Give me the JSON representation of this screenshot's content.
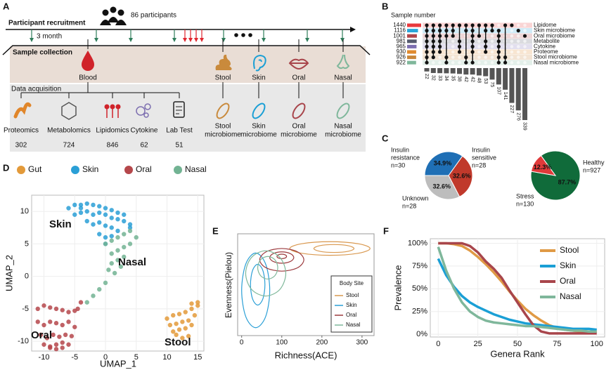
{
  "panel_labels": [
    "A",
    "B",
    "C",
    "D",
    "E",
    "F"
  ],
  "panel_a": {
    "recruitment_label": "Participant recruitment",
    "participants": "86 participants",
    "interval": "3 month",
    "collection_label": "Sample collection",
    "acquisition_label": "Data acquisition",
    "sources": [
      "Blood",
      "Stool",
      "Skin",
      "Oral",
      "Nasal"
    ],
    "omics": [
      {
        "name": "Proteomics",
        "count": 302
      },
      {
        "name": "Metabolomics",
        "count": 724
      },
      {
        "name": "Lipidomics",
        "count": 846
      },
      {
        "name": "Cytokine",
        "count": 62
      },
      {
        "name": "Lab Test",
        "count": 51
      }
    ],
    "microbiomes": [
      [
        "Stool",
        "microbiome"
      ],
      [
        "Skin",
        "microbiome"
      ],
      [
        "Oral",
        "microbiome"
      ],
      [
        "Nasal",
        "microbiome"
      ]
    ]
  },
  "chart_data": [
    {
      "type": "upset",
      "title": "Sample number",
      "sets": [
        {
          "name": "Lipidome",
          "size": 1440,
          "color": "#e8393d"
        },
        {
          "name": "Skin microbiome",
          "size": 1116,
          "color": "#2aa6d9"
        },
        {
          "name": "Oral microbiome",
          "size": 1001,
          "color": "#b0454a"
        },
        {
          "name": "Metabolite",
          "size": 981,
          "color": "#555b6e"
        },
        {
          "name": "Cytokine",
          "size": 965,
          "color": "#7d6fb0"
        },
        {
          "name": "Proteome",
          "size": 930,
          "color": "#e08a2e"
        },
        {
          "name": "Stool microbiome",
          "size": 926,
          "color": "#c8863a"
        },
        {
          "name": "Nasal microbiome",
          "size": 922,
          "color": "#7fb79b"
        }
      ],
      "intersections": [
        {
          "sets": [
            0,
            1,
            2,
            3,
            4,
            5,
            6,
            7
          ],
          "value": 22
        },
        {
          "sets": [
            0,
            1,
            2,
            3,
            4,
            5,
            6
          ],
          "value": 32
        },
        {
          "sets": [
            0,
            1,
            2,
            3,
            4,
            5
          ],
          "value": 33
        },
        {
          "sets": [
            0,
            1,
            2,
            6,
            7
          ],
          "value": 34
        },
        {
          "sets": [
            0,
            1,
            2
          ],
          "value": 35
        },
        {
          "sets": [
            0,
            3,
            4,
            5
          ],
          "value": 38
        },
        {
          "sets": [
            0,
            1,
            6,
            7
          ],
          "value": 42
        },
        {
          "sets": [
            0,
            1,
            2,
            3,
            4,
            5,
            7
          ],
          "value": 42
        },
        {
          "sets": [
            0,
            2
          ],
          "value": 48
        },
        {
          "sets": [
            0,
            1,
            3,
            4,
            5
          ],
          "value": 53
        },
        {
          "sets": [
            0,
            1
          ],
          "value": 75
        },
        {
          "sets": [
            1,
            2,
            3,
            4,
            5,
            6,
            7
          ],
          "value": 107
        },
        {
          "sets": [
            0,
            6,
            7
          ],
          "value": 141
        },
        {
          "sets": [
            0
          ],
          "value": 227
        },
        {
          "sets": [
            1
          ],
          "value": 276
        },
        {
          "sets": [
            2
          ],
          "value": 339
        }
      ]
    },
    {
      "type": "pie",
      "labels": [
        [
          "Insulin",
          "resistance"
        ],
        [
          "Insulin",
          "sensitive"
        ],
        [
          "Unknown"
        ]
      ],
      "values": [
        34.9,
        32.6,
        32.6
      ],
      "value_labels": [
        "34.9%",
        "32.6%",
        "32.6%"
      ],
      "counts": [
        30,
        28,
        28
      ],
      "count_labels": [
        "n=30",
        "n=28",
        "n=28"
      ],
      "colors": [
        "#1f6fb5",
        "#c0392b",
        "#bdbdbd"
      ],
      "label_colors": [
        "#1f6fb5",
        "#c0392b",
        "#111111"
      ]
    },
    {
      "type": "pie",
      "labels": [
        [
          "Healthy"
        ],
        [
          "Stress"
        ]
      ],
      "values": [
        87.7,
        12.3
      ],
      "value_labels": [
        "87.7%",
        "12.3%"
      ],
      "counts": [
        927,
        130
      ],
      "count_labels": [
        "n=927",
        "n=130"
      ],
      "colors": [
        "#106b3a",
        "#e03a3a"
      ],
      "label_colors": [
        "#106b3a",
        "#e03a3a"
      ]
    },
    {
      "type": "scatter",
      "x_label": "UMAP_1",
      "y_label": "UMAP_2",
      "xlim": [
        -12,
        16
      ],
      "ylim": [
        -11.5,
        12.5
      ],
      "xticks": [
        -10,
        -5,
        0,
        5,
        10,
        15
      ],
      "yticks": [
        -10,
        -5,
        0,
        5,
        10
      ],
      "grid": true,
      "legend": [
        "Gut",
        "Skin",
        "Oral",
        "Nasal"
      ],
      "annotations": [
        "Skin",
        "Nasal",
        "Oral",
        "Stool"
      ],
      "series": [
        {
          "name": "Gut",
          "color": "#e39a3a",
          "x": [
            10,
            11,
            12,
            13,
            14,
            15,
            10.5,
            11.5,
            12.5,
            13.5,
            14.5,
            11,
            12,
            13,
            14,
            12.5,
            13.5,
            11.5,
            14,
            15
          ],
          "y": [
            -6.5,
            -6,
            -5.8,
            -5.5,
            -5,
            -4.5,
            -7.5,
            -7.3,
            -7,
            -6.8,
            -6,
            -8.5,
            -8.2,
            -8,
            -7.5,
            -9.5,
            -9.2,
            -9,
            -4.2,
            -4
          ]
        },
        {
          "name": "Skin",
          "color": "#2a9fd6",
          "x": [
            -6,
            -5,
            -4,
            -3,
            -2,
            -1,
            0,
            1,
            2,
            3,
            -5,
            -4,
            -3,
            -2,
            -1,
            0,
            1,
            2,
            3,
            4,
            -3,
            -2,
            -1,
            0,
            1,
            2,
            -1,
            0,
            1,
            0,
            -4,
            4
          ],
          "y": [
            10.5,
            11,
            11,
            11.2,
            11,
            10.8,
            10.5,
            10.2,
            9.8,
            9.5,
            9.5,
            9.8,
            10,
            9.5,
            9.8,
            9.5,
            9,
            8.8,
            8.5,
            7.5,
            8.5,
            8,
            8.3,
            7.8,
            7.5,
            7,
            6.5,
            6,
            6.2,
            5,
            10.5,
            8
          ]
        },
        {
          "name": "Oral",
          "color": "#b5474b",
          "x": [
            -11,
            -10,
            -9,
            -8,
            -7,
            -6,
            -5,
            -4.5,
            -11,
            -10,
            -9,
            -8,
            -7,
            -6,
            -5,
            -10.5,
            -9.5,
            -8.5,
            -7.5,
            -6.5,
            -5.5,
            -10,
            -9,
            -8,
            -7,
            -6,
            -9,
            -8,
            -7,
            -4
          ],
          "y": [
            -5,
            -4.5,
            -4.8,
            -5,
            -5.2,
            -5.5,
            -5.3,
            -5,
            -7,
            -7.5,
            -7,
            -7.2,
            -7.5,
            -7,
            -7.8,
            -9,
            -9.5,
            -9,
            -9.3,
            -9,
            -9.2,
            -10.5,
            -10.8,
            -10.5,
            -10.2,
            -10.5,
            -11,
            -11.2,
            -11,
            -4
          ]
        },
        {
          "name": "Nasal",
          "color": "#72b393",
          "x": [
            0,
            1,
            2,
            1,
            2,
            3,
            4,
            1,
            2,
            3,
            0.5,
            1.5,
            2.5,
            0,
            -1,
            -2,
            -3,
            3,
            4,
            5
          ],
          "y": [
            5,
            5.5,
            6,
            3.5,
            4,
            4.5,
            5,
            2,
            2.5,
            3,
            1,
            0.5,
            1.5,
            -1,
            -2,
            -3,
            -4,
            6.5,
            7,
            6
          ]
        }
      ]
    },
    {
      "type": "contour",
      "x_label": "Richness(ACE)",
      "y_label": "Evenness(Pielou)",
      "xlim": [
        -10,
        330
      ],
      "ylim": [
        0.05,
        0.95
      ],
      "xticks": [
        0,
        100,
        200,
        300
      ],
      "legend_title": "Body Site",
      "series": [
        {
          "name": "Stool",
          "color": "#d9984f",
          "contours": [
            {
              "x": [
                320,
                290.7,
                220,
                149.3,
                120,
                149.3,
                220,
                290.7
              ],
              "y": [
                0.82,
                0.862,
                0.88,
                0.862,
                0.82,
                0.778,
                0.76,
                0.778
              ]
            },
            {
              "x": [
                280,
                265.4,
                230,
                194.6,
                180,
                194.6,
                230,
                265.4
              ],
              "y": [
                0.82,
                0.845,
                0.855,
                0.845,
                0.82,
                0.795,
                0.785,
                0.795
              ]
            }
          ]
        },
        {
          "name": "Skin",
          "color": "#2a9fd6",
          "contours": [
            {
              "x": [
                70,
                59.7,
                35,
                10.3,
                0,
                10.3,
                35,
                59.7
              ],
              "y": [
                0.45,
                0.683,
                0.78,
                0.683,
                0.45,
                0.217,
                0.12,
                0.217
              ]
            },
            {
              "x": [
                58,
                52.7,
                40,
                27.3,
                22,
                27.3,
                40,
                52.7
              ],
              "y": [
                0.5,
                0.627,
                0.68,
                0.627,
                0.5,
                0.373,
                0.32,
                0.373
              ]
            }
          ]
        },
        {
          "name": "Oral",
          "color": "#9c3a3e",
          "contours": [
            {
              "x": [
                155,
                138.9,
                100,
                61.1,
                45,
                61.1,
                100,
                138.9
              ],
              "y": [
                0.72,
                0.791,
                0.82,
                0.791,
                0.72,
                0.649,
                0.62,
                0.649
              ]
            },
            {
              "x": [
                130,
                121.2,
                100,
                78.8,
                70,
                78.8,
                100,
                121.2
              ],
              "y": [
                0.74,
                0.775,
                0.79,
                0.775,
                0.74,
                0.705,
                0.69,
                0.705
              ]
            },
            {
              "x": [
                112,
                108.5,
                100,
                91.5,
                88,
                91.5,
                100,
                108.5
              ],
              "y": [
                0.75,
                0.764,
                0.77,
                0.764,
                0.75,
                0.736,
                0.73,
                0.736
              ]
            }
          ]
        },
        {
          "name": "Nasal",
          "color": "#7fb89a",
          "contours": [
            {
              "x": [
                110,
                95.4,
                60,
                24.6,
                10,
                24.6,
                60,
                95.4
              ],
              "y": [
                0.6,
                0.741,
                0.8,
                0.741,
                0.6,
                0.459,
                0.4,
                0.459
              ]
            },
            {
              "x": [
                90,
                82.7,
                65,
                47.3,
                40,
                47.3,
                65,
                82.7
              ],
              "y": [
                0.65,
                0.721,
                0.75,
                0.721,
                0.65,
                0.579,
                0.55,
                0.579
              ]
            }
          ]
        }
      ]
    },
    {
      "type": "line",
      "x_label": "Genera Rank",
      "y_label": "Prevalence",
      "xlim": [
        -5,
        105
      ],
      "ylim": [
        -3,
        105
      ],
      "xticks": [
        0,
        25,
        50,
        75,
        100
      ],
      "yticks": [
        {
          "value": 0,
          "label": "0%"
        },
        {
          "value": 25,
          "label": "25%"
        },
        {
          "value": 50,
          "label": "50%"
        },
        {
          "value": 75,
          "label": "75%"
        },
        {
          "value": 100,
          "label": "100%"
        }
      ],
      "grid": true,
      "x": [
        0,
        5,
        10,
        15,
        20,
        25,
        30,
        35,
        40,
        45,
        50,
        55,
        60,
        65,
        70,
        75,
        80,
        85,
        90,
        95,
        100
      ],
      "series": [
        {
          "name": "Stool",
          "color": "#e09a45",
          "values": [
            100,
            100,
            99,
            97,
            92,
            85,
            77,
            68,
            58,
            47,
            37,
            28,
            21,
            15,
            10,
            7,
            5,
            4,
            3,
            3,
            3
          ]
        },
        {
          "name": "Skin",
          "color": "#1a9fd5",
          "values": [
            83,
            65,
            52,
            42,
            35,
            30,
            26,
            22,
            19,
            16,
            14,
            12,
            11,
            10,
            9,
            8,
            7,
            6,
            6,
            6,
            5
          ]
        },
        {
          "name": "Oral",
          "color": "#a8454b",
          "values": [
            100,
            100,
            100,
            100,
            97,
            90,
            80,
            72,
            62,
            48,
            35,
            22,
            10,
            3,
            1,
            1,
            1,
            1,
            1,
            1,
            1
          ]
        },
        {
          "name": "Nasal",
          "color": "#7fb79b",
          "values": [
            96,
            70,
            50,
            35,
            25,
            19,
            15,
            13,
            12,
            11,
            10,
            9,
            9,
            8,
            7,
            6,
            5,
            4,
            4,
            3,
            3
          ]
        }
      ]
    }
  ]
}
